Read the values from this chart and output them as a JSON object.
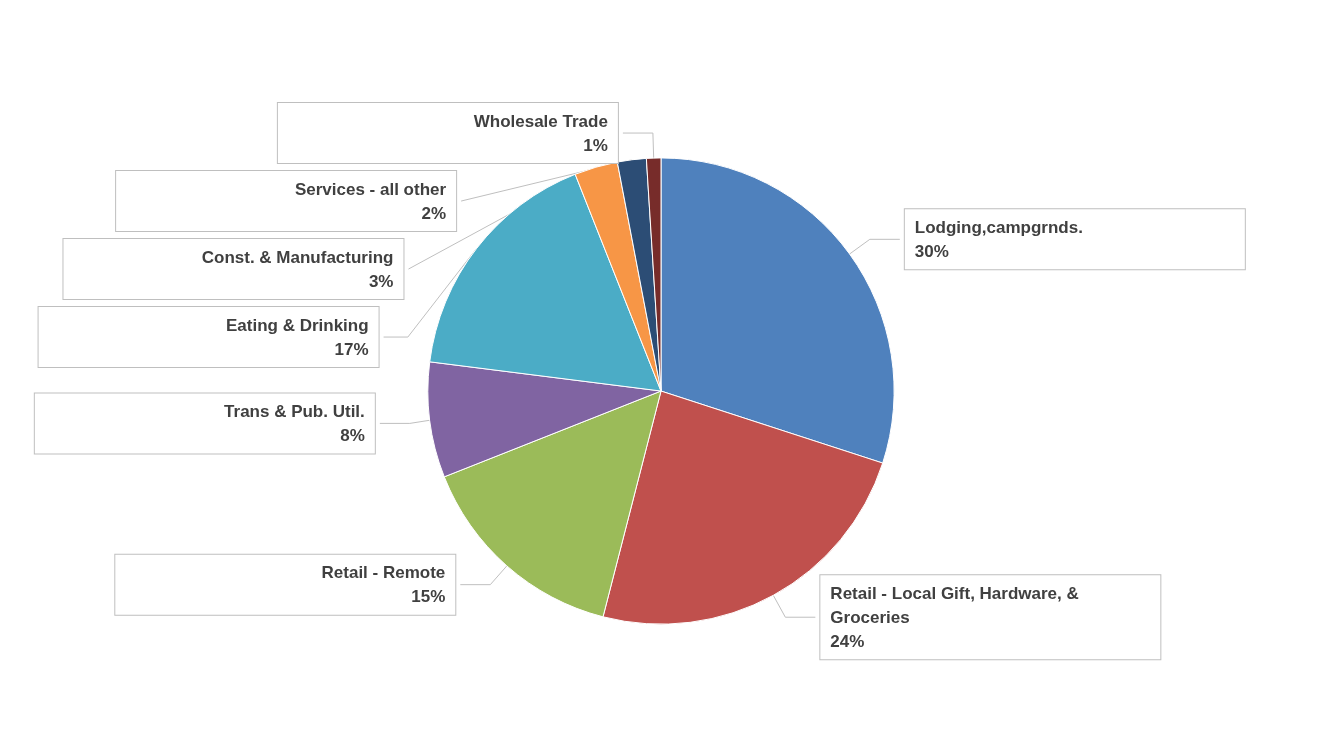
{
  "chart_data": {
    "type": "pie",
    "categories": [
      "Lodging,campgrnds.",
      "Retail - Local Gift, Hardware, & Groceries",
      "Retail - Remote",
      "Trans & Pub. Util.",
      "Eating & Drinking",
      "Const. & Manufacturing",
      "Services - all other",
      "Wholesale Trade"
    ],
    "values": [
      30,
      24,
      15,
      8,
      17,
      3,
      2,
      1
    ],
    "colors": [
      "#4f81bd",
      "#c0504d",
      "#9bbb59",
      "#8064a2",
      "#4bacc6",
      "#f79646",
      "#2c4d75",
      "#772c2a"
    ],
    "value_labels": [
      "30%",
      "24%",
      "15%",
      "8%",
      "17%",
      "3%",
      "2%",
      "1%"
    ],
    "legend": false
  }
}
